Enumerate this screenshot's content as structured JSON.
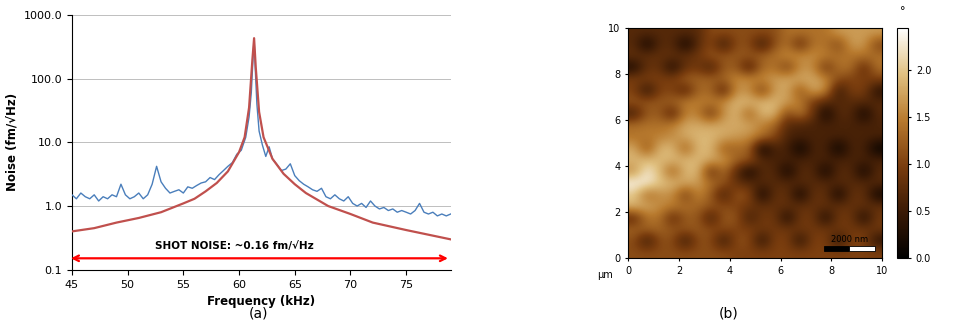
{
  "chart_data": [
    {
      "type": "line",
      "caption": "(a)",
      "x_label": "Frequency (kHz)",
      "y_label": "Noise (fm/√Hz)",
      "log": "y",
      "grid": true,
      "xlim": [
        45,
        79
      ],
      "ylim": [
        0.1,
        1000.0
      ],
      "xticks": [
        45,
        50,
        55,
        60,
        65,
        70,
        75
      ],
      "yticks": [
        0.1,
        1.0,
        10.0,
        100.0,
        1000.0
      ],
      "annotations": [
        {
          "text": "SHOT NOISE: ~0.16 fm/√Hz",
          "color": "#ff0000"
        }
      ],
      "series": [
        {
          "color": "#4a7ebb",
          "line_style": "solid",
          "x": [
            45.0,
            45.4,
            45.8,
            46.2,
            46.6,
            47.0,
            47.4,
            47.8,
            48.2,
            48.6,
            49.0,
            49.4,
            49.8,
            50.2,
            50.6,
            51.0,
            51.4,
            51.8,
            52.2,
            52.6,
            53.0,
            53.4,
            53.8,
            54.2,
            54.6,
            55.0,
            55.4,
            55.8,
            56.2,
            56.6,
            57.0,
            57.4,
            57.8,
            58.2,
            58.6,
            59.0,
            59.4,
            59.8,
            60.2,
            60.6,
            60.9,
            61.1,
            61.25,
            61.35,
            61.45,
            61.6,
            61.8,
            62.1,
            62.4,
            62.7,
            63.0,
            63.4,
            63.8,
            64.2,
            64.6,
            65.0,
            65.4,
            65.8,
            66.2,
            66.6,
            67.0,
            67.4,
            67.8,
            68.2,
            68.6,
            69.0,
            69.4,
            69.8,
            70.2,
            70.6,
            71.0,
            71.4,
            71.8,
            72.2,
            72.6,
            73.0,
            73.4,
            73.8,
            74.2,
            74.6,
            75.0,
            75.4,
            75.8,
            76.2,
            76.6,
            77.0,
            77.4,
            77.8,
            78.2,
            78.6,
            79.0
          ],
          "values": [
            1.5,
            1.3,
            1.6,
            1.4,
            1.3,
            1.5,
            1.2,
            1.4,
            1.3,
            1.5,
            1.4,
            2.2,
            1.5,
            1.3,
            1.4,
            1.6,
            1.3,
            1.5,
            2.2,
            4.2,
            2.4,
            1.9,
            1.6,
            1.7,
            1.8,
            1.6,
            2.0,
            1.9,
            2.1,
            2.3,
            2.4,
            2.8,
            2.6,
            3.1,
            3.6,
            4.2,
            4.8,
            6.5,
            7.5,
            12.0,
            25.0,
            60.0,
            200.0,
            420.0,
            150.0,
            40.0,
            15.0,
            9.0,
            6.0,
            8.5,
            5.5,
            4.5,
            3.6,
            3.8,
            4.6,
            3.0,
            2.5,
            2.2,
            2.0,
            1.8,
            1.7,
            1.9,
            1.4,
            1.3,
            1.5,
            1.3,
            1.2,
            1.4,
            1.1,
            1.0,
            1.1,
            0.95,
            1.2,
            1.0,
            0.9,
            0.95,
            0.85,
            0.9,
            0.8,
            0.85,
            0.8,
            0.75,
            0.85,
            1.1,
            0.8,
            0.75,
            0.8,
            0.7,
            0.75,
            0.7,
            0.75
          ]
        },
        {
          "color": "#c0504d",
          "line_style": "solid",
          "x": [
            45,
            47,
            49,
            51,
            53,
            55,
            56,
            57,
            58,
            59,
            60,
            60.5,
            60.9,
            61.2,
            61.35,
            61.5,
            61.8,
            62.2,
            63,
            64,
            65,
            66,
            68,
            70,
            72,
            75,
            79
          ],
          "values": [
            0.4,
            0.45,
            0.55,
            0.65,
            0.8,
            1.1,
            1.3,
            1.7,
            2.3,
            3.5,
            7.0,
            12.0,
            35.0,
            200.0,
            430.0,
            150.0,
            30.0,
            12.0,
            5.5,
            3.2,
            2.2,
            1.6,
            1.0,
            0.75,
            0.55,
            0.42,
            0.3
          ]
        }
      ]
    },
    {
      "type": "heatmap",
      "caption": "(b)",
      "x_label": "µm",
      "xlim": [
        0,
        10
      ],
      "ylim": [
        0,
        10
      ],
      "xticks": [
        0,
        2,
        4,
        6,
        8,
        10
      ],
      "yticks": [
        0,
        2,
        4,
        6,
        8,
        10
      ],
      "tick_labels": true,
      "colorbar": {
        "label": "°",
        "range": [
          0.0,
          2.45
        ],
        "ticks": [
          0.0,
          0.5,
          1.0,
          1.5,
          2.0
        ]
      },
      "scale_bar": {
        "label": "2000 nm",
        "length": 2
      },
      "cells": [
        [
          0.7,
          0.7,
          0.7,
          0.7,
          0.7,
          0.7,
          1.1,
          1.1,
          1.1,
          1.1,
          1.1,
          1.1,
          1.4,
          1.4,
          1.4,
          1.4,
          1.7,
          1.7,
          1.7,
          1.7
        ],
        [
          0.7,
          0.1,
          0.7,
          0.7,
          0.1,
          0.7,
          1.1,
          0.4,
          1.1,
          1.1,
          0.4,
          1.1,
          1.4,
          0.7,
          1.4,
          1.4,
          1.0,
          1.7,
          1.7,
          1.0
        ],
        [
          0.8,
          0.8,
          0.8,
          0.8,
          0.8,
          0.9,
          1.2,
          1.2,
          1.2,
          1.2,
          1.3,
          1.4,
          1.6,
          1.6,
          1.6,
          1.5,
          1.4,
          1.4,
          1.4,
          1.4
        ],
        [
          0.2,
          0.8,
          0.8,
          0.2,
          0.8,
          0.9,
          0.5,
          1.2,
          1.2,
          0.5,
          1.3,
          1.4,
          0.9,
          1.6,
          1.6,
          0.8,
          1.4,
          1.4,
          0.7,
          1.4
        ],
        [
          1.0,
          1.0,
          1.0,
          1.0,
          1.3,
          1.3,
          1.3,
          1.3,
          1.6,
          1.6,
          1.6,
          1.7,
          1.8,
          1.8,
          1.8,
          1.6,
          1.1,
          1.0,
          1.0,
          1.0
        ],
        [
          1.0,
          0.3,
          1.0,
          1.0,
          0.6,
          1.3,
          1.3,
          0.6,
          1.6,
          1.6,
          0.9,
          1.7,
          1.8,
          1.1,
          1.8,
          1.6,
          0.4,
          1.0,
          1.0,
          0.3
        ],
        [
          1.2,
          1.2,
          1.2,
          1.3,
          1.5,
          1.5,
          1.5,
          1.6,
          1.9,
          1.9,
          1.9,
          1.9,
          1.7,
          1.5,
          0.9,
          0.7,
          0.7,
          0.7,
          0.7,
          0.7
        ],
        [
          0.5,
          1.2,
          1.2,
          0.6,
          1.5,
          1.5,
          0.8,
          1.6,
          1.9,
          1.2,
          1.9,
          1.9,
          1.0,
          1.5,
          0.9,
          0.1,
          0.7,
          0.7,
          0.1,
          0.7
        ],
        [
          1.4,
          1.4,
          1.4,
          1.5,
          1.8,
          1.8,
          1.8,
          1.8,
          1.8,
          1.8,
          1.5,
          1.3,
          0.7,
          0.6,
          0.6,
          0.6,
          0.6,
          0.6,
          0.6,
          0.6
        ],
        [
          1.4,
          1.5,
          1.5,
          1.6,
          1.8,
          1.9,
          1.9,
          1.8,
          1.7,
          1.6,
          1.4,
          1.1,
          0.6,
          0.6,
          0.6,
          0.6,
          0.6,
          0.6,
          0.6,
          0.6
        ],
        [
          1.8,
          1.1,
          1.9,
          1.9,
          1.2,
          1.9,
          1.9,
          1.2,
          1.3,
          1.3,
          0.0,
          0.6,
          0.6,
          0.0,
          0.6,
          0.6,
          0.0,
          0.6,
          0.6,
          0.0
        ],
        [
          1.9,
          1.9,
          1.9,
          1.9,
          1.9,
          1.9,
          1.8,
          1.7,
          1.3,
          1.2,
          0.7,
          0.6,
          0.6,
          0.6,
          0.6,
          0.6,
          0.6,
          0.6,
          0.6,
          0.6
        ],
        [
          1.6,
          2.3,
          1.9,
          1.2,
          1.9,
          1.9,
          0.7,
          1.4,
          0.7,
          0.1,
          0.7,
          0.7,
          0.1,
          0.7,
          0.7,
          0.1,
          0.7,
          0.7,
          0.1,
          0.7
        ],
        [
          2.4,
          2.3,
          2.0,
          1.9,
          1.8,
          1.7,
          1.4,
          1.2,
          0.8,
          0.7,
          0.7,
          0.7,
          0.7,
          0.7,
          0.7,
          0.7,
          0.7,
          0.7,
          0.7,
          0.7
        ],
        [
          2.0,
          1.3,
          1.6,
          1.6,
          0.9,
          1.6,
          1.2,
          0.5,
          1.2,
          1.1,
          0.1,
          0.8,
          0.8,
          0.1,
          0.8,
          0.8,
          0.1,
          0.8,
          0.8,
          0.1
        ],
        [
          1.9,
          1.8,
          1.6,
          1.5,
          1.4,
          1.3,
          1.2,
          1.1,
          1.0,
          0.9,
          0.8,
          0.8,
          0.8,
          0.8,
          0.8,
          0.8,
          0.8,
          0.8,
          0.8,
          0.8
        ],
        [
          0.7,
          1.4,
          1.4,
          0.7,
          1.2,
          1.2,
          0.5,
          1.2,
          1.2,
          0.5,
          0.9,
          0.9,
          0.2,
          0.9,
          0.9,
          0.2,
          0.9,
          0.9,
          0.2,
          0.9
        ],
        [
          1.3,
          1.3,
          1.3,
          1.2,
          1.2,
          1.2,
          1.1,
          1.1,
          1.0,
          1.0,
          0.9,
          0.9,
          0.9,
          0.9,
          0.9,
          0.9,
          0.9,
          0.9,
          0.9,
          0.9
        ],
        [
          1.1,
          0.4,
          1.1,
          1.1,
          0.4,
          1.1,
          1.1,
          0.4,
          1.1,
          1.1,
          0.3,
          1.0,
          1.0,
          0.3,
          1.0,
          1.0,
          0.3,
          1.0,
          1.0,
          0.3
        ],
        [
          1.1,
          1.1,
          1.1,
          1.1,
          1.1,
          1.1,
          1.1,
          1.1,
          1.0,
          1.0,
          1.0,
          1.0,
          1.0,
          1.0,
          1.0,
          1.0,
          1.0,
          1.0,
          1.0,
          1.0
        ]
      ]
    }
  ]
}
